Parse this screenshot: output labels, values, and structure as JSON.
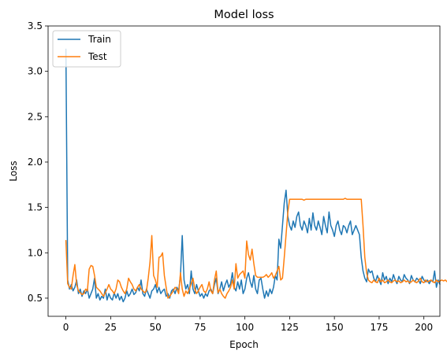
{
  "chart_data": {
    "type": "line",
    "title": "Model loss",
    "xlabel": "Epoch",
    "ylabel": "Loss",
    "xlim": [
      -9.95,
      208.95
    ],
    "ylim": [
      0.3,
      3.5
    ],
    "xticks": [
      0,
      25,
      50,
      75,
      100,
      125,
      150,
      175,
      200
    ],
    "yticks": [
      0.5,
      1.0,
      1.5,
      2.0,
      2.5,
      3.0,
      3.5
    ],
    "xtick_labels": [
      "0",
      "25",
      "50",
      "75",
      "100",
      "125",
      "150",
      "175",
      "200"
    ],
    "ytick_labels": [
      "0.5",
      "1.0",
      "1.5",
      "2.0",
      "2.5",
      "3.0",
      "3.5"
    ],
    "grid": false,
    "legend_position": "upper left",
    "series": [
      {
        "name": "Train",
        "color": "#1f77b4",
        "values": [
          3.25,
          0.7,
          0.6,
          0.65,
          0.58,
          0.62,
          0.7,
          0.55,
          0.6,
          0.52,
          0.58,
          0.55,
          0.6,
          0.5,
          0.55,
          0.6,
          0.72,
          0.5,
          0.55,
          0.48,
          0.52,
          0.5,
          0.6,
          0.48,
          0.55,
          0.5,
          0.48,
          0.56,
          0.5,
          0.55,
          0.48,
          0.52,
          0.46,
          0.5,
          0.58,
          0.52,
          0.55,
          0.6,
          0.54,
          0.56,
          0.62,
          0.58,
          0.7,
          0.55,
          0.52,
          0.6,
          0.55,
          0.5,
          0.58,
          0.6,
          0.65,
          0.56,
          0.62,
          0.55,
          0.58,
          0.6,
          0.52,
          0.55,
          0.5,
          0.58,
          0.6,
          0.55,
          0.62,
          0.58,
          0.75,
          1.19,
          0.7,
          0.6,
          0.65,
          0.55,
          0.8,
          0.6,
          0.55,
          0.65,
          0.58,
          0.52,
          0.55,
          0.5,
          0.55,
          0.52,
          0.58,
          0.6,
          0.55,
          0.65,
          0.72,
          0.55,
          0.6,
          0.68,
          0.58,
          0.65,
          0.7,
          0.62,
          0.66,
          0.78,
          0.62,
          0.58,
          0.68,
          0.6,
          0.7,
          0.55,
          0.6,
          0.72,
          0.78,
          0.68,
          0.62,
          0.75,
          0.6,
          0.55,
          0.7,
          0.72,
          0.6,
          0.5,
          0.58,
          0.52,
          0.6,
          0.55,
          0.62,
          0.75,
          0.7,
          1.15,
          1.05,
          1.3,
          1.55,
          1.69,
          1.4,
          1.3,
          1.25,
          1.35,
          1.28,
          1.4,
          1.45,
          1.3,
          1.25,
          1.35,
          1.3,
          1.22,
          1.38,
          1.25,
          1.44,
          1.3,
          1.25,
          1.35,
          1.28,
          1.2,
          1.4,
          1.3,
          1.22,
          1.45,
          1.3,
          1.25,
          1.18,
          1.3,
          1.35,
          1.25,
          1.2,
          1.3,
          1.28,
          1.22,
          1.3,
          1.35,
          1.2,
          1.25,
          1.3,
          1.25,
          1.2,
          0.95,
          0.8,
          0.72,
          0.68,
          0.82,
          0.78,
          0.8,
          0.72,
          0.68,
          0.75,
          0.7,
          0.65,
          0.78,
          0.7,
          0.74,
          0.66,
          0.72,
          0.68,
          0.76,
          0.7,
          0.66,
          0.74,
          0.7,
          0.68,
          0.76,
          0.72,
          0.7,
          0.66,
          0.75,
          0.7,
          0.68,
          0.72,
          0.7,
          0.66,
          0.74,
          0.7,
          0.68,
          0.7,
          0.66,
          0.7,
          0.68,
          0.8,
          0.62,
          0.7,
          0.65
        ]
      },
      {
        "name": "Test",
        "color": "#ff7f0e",
        "values": [
          1.14,
          0.66,
          0.62,
          0.6,
          0.75,
          0.87,
          0.65,
          0.58,
          0.56,
          0.54,
          0.55,
          0.6,
          0.58,
          0.82,
          0.86,
          0.85,
          0.75,
          0.62,
          0.6,
          0.58,
          0.55,
          0.52,
          0.56,
          0.6,
          0.65,
          0.6,
          0.58,
          0.55,
          0.6,
          0.7,
          0.68,
          0.62,
          0.58,
          0.55,
          0.6,
          0.72,
          0.68,
          0.65,
          0.6,
          0.58,
          0.62,
          0.65,
          0.6,
          0.58,
          0.56,
          0.58,
          0.72,
          0.9,
          1.19,
          0.75,
          0.7,
          0.62,
          0.95,
          0.96,
          1.0,
          0.75,
          0.62,
          0.5,
          0.52,
          0.55,
          0.58,
          0.62,
          0.6,
          0.55,
          0.78,
          0.6,
          0.52,
          0.58,
          0.55,
          0.6,
          0.66,
          0.72,
          0.6,
          0.55,
          0.58,
          0.62,
          0.65,
          0.58,
          0.56,
          0.6,
          0.68,
          0.58,
          0.55,
          0.7,
          0.8,
          0.56,
          0.6,
          0.55,
          0.52,
          0.5,
          0.55,
          0.58,
          0.62,
          0.7,
          0.6,
          0.88,
          0.72,
          0.76,
          0.78,
          0.8,
          0.72,
          1.13,
          0.98,
          0.92,
          1.04,
          0.88,
          0.75,
          0.73,
          0.73,
          0.73,
          0.73,
          0.74,
          0.76,
          0.73,
          0.75,
          0.78,
          0.72,
          0.75,
          0.8,
          0.85,
          0.7,
          0.72,
          0.95,
          1.2,
          1.45,
          1.59,
          1.59,
          1.59,
          1.59,
          1.59,
          1.59,
          1.59,
          1.59,
          1.58,
          1.59,
          1.59,
          1.59,
          1.59,
          1.59,
          1.59,
          1.59,
          1.59,
          1.59,
          1.59,
          1.59,
          1.59,
          1.59,
          1.59,
          1.59,
          1.59,
          1.59,
          1.59,
          1.59,
          1.59,
          1.59,
          1.59,
          1.6,
          1.59,
          1.59,
          1.59,
          1.59,
          1.59,
          1.59,
          1.59,
          1.59,
          1.59,
          1.3,
          0.95,
          0.78,
          0.7,
          0.68,
          0.67,
          0.7,
          0.68,
          0.67,
          0.72,
          0.68,
          0.7,
          0.67,
          0.68,
          0.7,
          0.68,
          0.67,
          0.69,
          0.7,
          0.68,
          0.69,
          0.67,
          0.68,
          0.7,
          0.68,
          0.69,
          0.67,
          0.68,
          0.7,
          0.68,
          0.67,
          0.69,
          0.72,
          0.68,
          0.67,
          0.7,
          0.68,
          0.69,
          0.7,
          0.68,
          0.67,
          0.7,
          0.68,
          0.69,
          0.7,
          0.69,
          0.7,
          0.68
        ]
      }
    ]
  }
}
